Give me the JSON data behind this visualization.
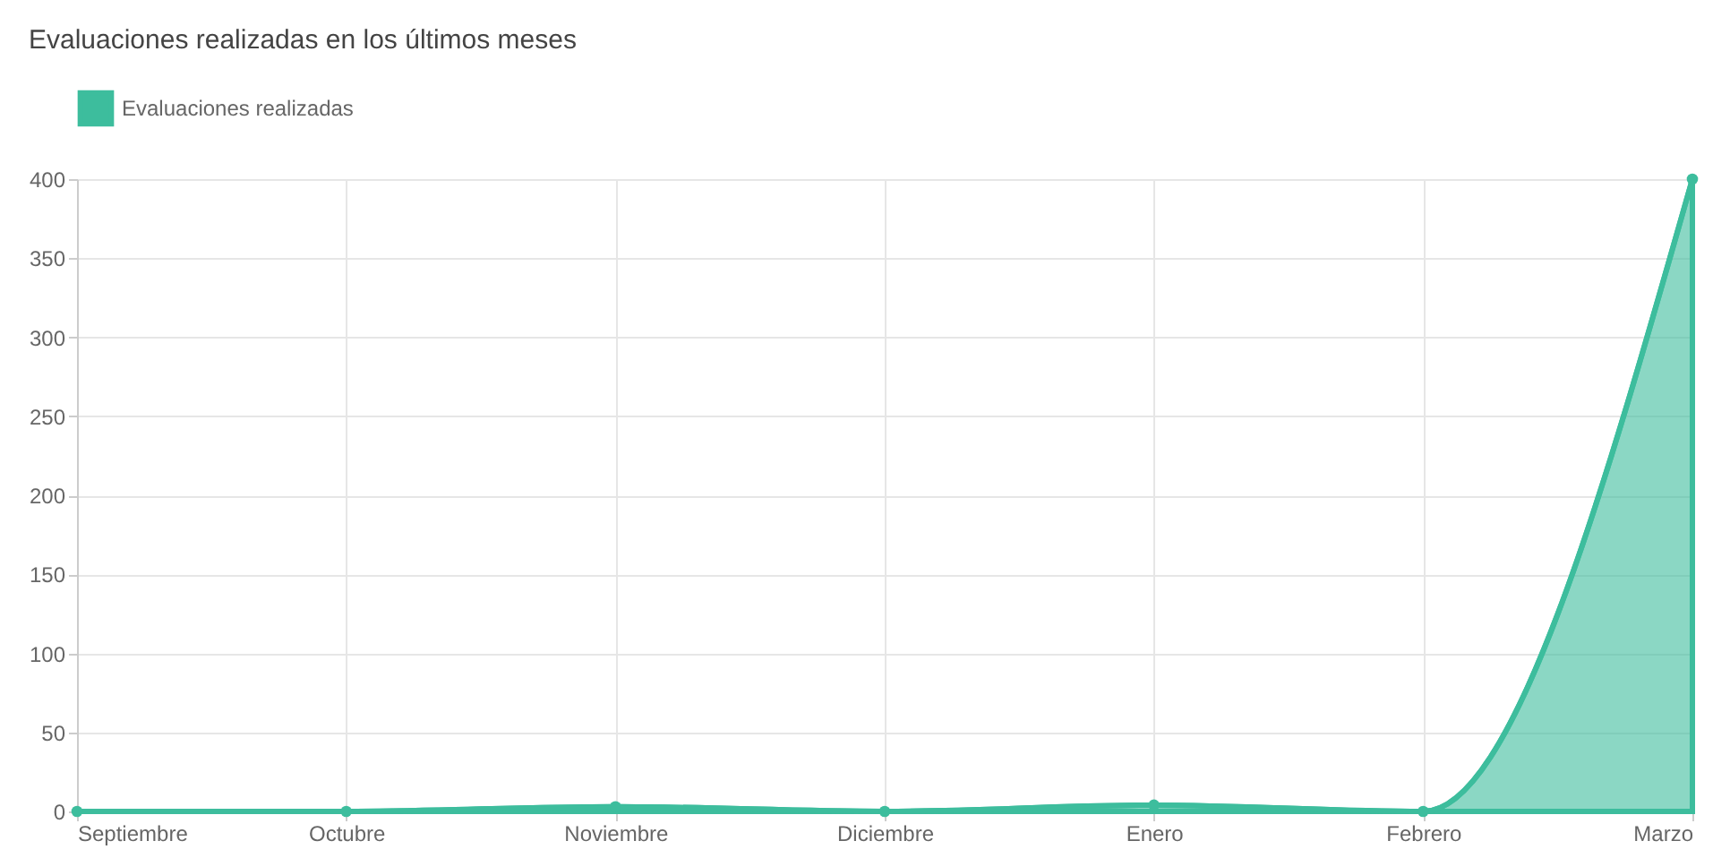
{
  "chart_data": {
    "type": "area",
    "title": "Evaluaciones realizadas en los últimos meses",
    "categories": [
      "Septiembre",
      "Octubre",
      "Noviembre",
      "Diciembre",
      "Enero",
      "Febrero",
      "Marzo"
    ],
    "series": [
      {
        "name": "Evaluaciones realizadas",
        "color": "#3dbd9d",
        "values": [
          0,
          0,
          3,
          0,
          4,
          0,
          400
        ]
      }
    ],
    "ylim": [
      0,
      400
    ],
    "yticks": [
      0,
      50,
      100,
      150,
      200,
      250,
      300,
      350,
      400
    ],
    "grid": true,
    "legend": "top",
    "marker": "circle"
  }
}
